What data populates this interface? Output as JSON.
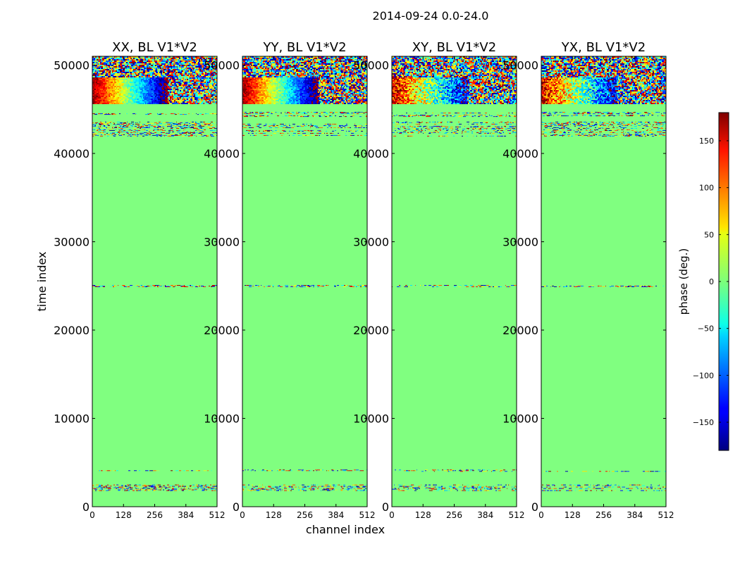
{
  "suptitle": "2014-09-24 0.0-24.0",
  "chart_data": {
    "type": "heatmap",
    "panels": [
      {
        "title": "XX, BL V1*V2"
      },
      {
        "title": "YY, BL V1*V2"
      },
      {
        "title": "XY, BL V1*V2"
      },
      {
        "title": "YX, BL V1*V2"
      }
    ],
    "xlabel": "channel index",
    "ylabel": "time index",
    "xlim": [
      0,
      512
    ],
    "ylim": [
      0,
      51000
    ],
    "xticks": [
      0,
      128,
      256,
      384,
      512
    ],
    "yticks": [
      0,
      10000,
      20000,
      30000,
      40000,
      50000
    ],
    "background_phase_deg": 0,
    "noisy_time_bands": [
      {
        "from": 1800,
        "to": 2500
      },
      {
        "from": 4000,
        "to": 4200
      },
      {
        "from": 24900,
        "to": 25100
      },
      {
        "from": 42000,
        "to": 43600
      },
      {
        "from": 44200,
        "to": 44700
      },
      {
        "from": 45600,
        "to": 51000
      }
    ],
    "phase_ramp_band": {
      "from": 45600,
      "to": 48700
    },
    "colorbar": {
      "label": "phase (deg.)",
      "range": [
        -180,
        180
      ],
      "ticks": [
        150,
        100,
        50,
        0,
        -50,
        -100,
        -150
      ],
      "tick_labels": [
        "150",
        "100",
        "50",
        "0",
        "−50",
        "−100",
        "−150"
      ],
      "colormap": "jet"
    }
  }
}
